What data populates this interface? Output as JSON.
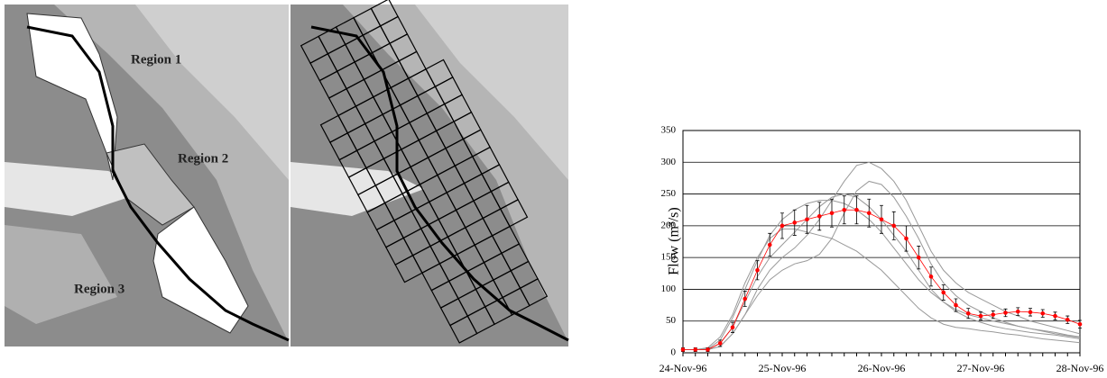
{
  "maps": {
    "region_labels": [
      "Region 1",
      "Region 2",
      "Region 3"
    ]
  },
  "chart_data": {
    "type": "line",
    "y_label": "Flow (m³/s)",
    "categories": [
      "24-Nov-96",
      null,
      null,
      null,
      null,
      null,
      null,
      null,
      "25-Nov-96",
      null,
      null,
      null,
      null,
      null,
      null,
      null,
      "26-Nov-96",
      null,
      null,
      null,
      null,
      null,
      null,
      null,
      "27-Nov-96",
      null,
      null,
      null,
      null,
      null,
      null,
      null,
      "28-Nov-96"
    ],
    "ylim": [
      0,
      350
    ],
    "yticks": [
      0,
      50,
      100,
      150,
      200,
      250,
      300,
      350
    ],
    "grid": true,
    "series": [
      {
        "color": "#999999",
        "values": [
          5,
          5,
          5,
          10,
          30,
          60,
          100,
          130,
          150,
          165,
          185,
          210,
          240,
          270,
          295,
          300,
          290,
          270,
          240,
          200,
          160,
          130,
          110,
          95,
          85,
          75,
          65,
          58,
          50,
          45,
          40,
          35,
          30
        ]
      },
      {
        "color": "#999999",
        "values": [
          5,
          5,
          8,
          25,
          60,
          110,
          150,
          180,
          195,
          195,
          190,
          185,
          180,
          170,
          160,
          145,
          130,
          110,
          90,
          70,
          55,
          45,
          40,
          38,
          35,
          33,
          30,
          28,
          25,
          22,
          20,
          18,
          16
        ]
      },
      {
        "color": "#999999",
        "values": [
          5,
          5,
          5,
          15,
          40,
          80,
          120,
          150,
          170,
          190,
          210,
          230,
          245,
          250,
          245,
          230,
          210,
          185,
          160,
          130,
          100,
          80,
          65,
          55,
          48,
          42,
          38,
          35,
          32,
          30,
          28,
          25,
          22
        ]
      },
      {
        "color": "#999999",
        "values": [
          5,
          5,
          5,
          10,
          30,
          60,
          90,
          115,
          130,
          140,
          145,
          155,
          180,
          220,
          255,
          270,
          265,
          245,
          215,
          180,
          140,
          110,
          90,
          75,
          65,
          55,
          48,
          42,
          38,
          34,
          30,
          27,
          24
        ]
      },
      {
        "color": "#999999",
        "values": [
          5,
          5,
          6,
          20,
          55,
          100,
          145,
          185,
          210,
          225,
          235,
          240,
          240,
          235,
          225,
          210,
          190,
          165,
          140,
          115,
          95,
          80,
          68,
          60,
          55,
          50,
          46,
          42,
          38,
          35,
          32,
          28,
          25
        ]
      },
      {
        "color": "#ff0000",
        "error_color": "#000000",
        "values": [
          5,
          5,
          5,
          15,
          40,
          85,
          130,
          170,
          200,
          205,
          210,
          215,
          220,
          225,
          225,
          220,
          210,
          200,
          180,
          150,
          120,
          95,
          75,
          62,
          58,
          60,
          63,
          65,
          64,
          62,
          58,
          52,
          45
        ],
        "errors": [
          3,
          3,
          3,
          5,
          8,
          12,
          15,
          18,
          20,
          20,
          22,
          22,
          22,
          22,
          22,
          22,
          22,
          22,
          20,
          18,
          15,
          12,
          10,
          8,
          6,
          6,
          6,
          6,
          6,
          6,
          6,
          6,
          6
        ]
      }
    ]
  }
}
